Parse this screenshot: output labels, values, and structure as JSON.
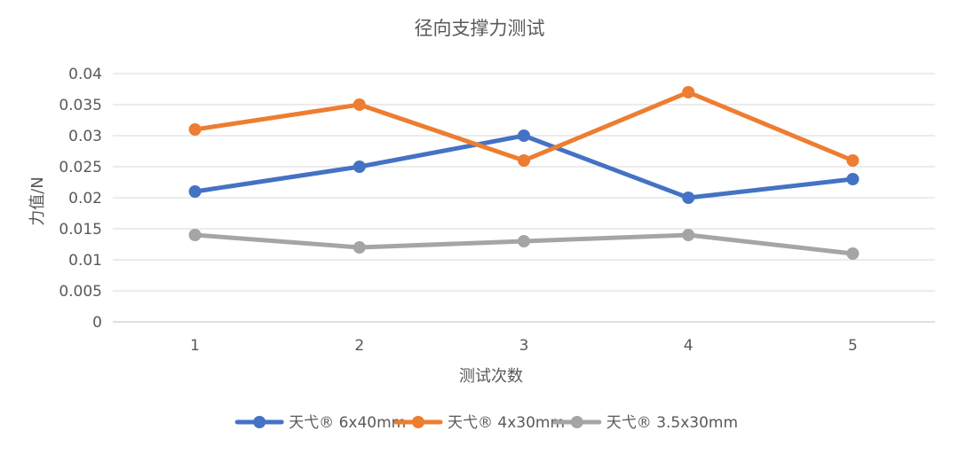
{
  "chart_data": {
    "type": "line",
    "title": "径向支撑力测试",
    "xlabel": "测试次数",
    "ylabel": "力值/N",
    "categories": [
      "1",
      "2",
      "3",
      "4",
      "5"
    ],
    "ylim": [
      0,
      0.04
    ],
    "y_ticks": [
      0,
      0.005,
      0.01,
      0.015,
      0.02,
      0.025,
      0.03,
      0.035,
      0.04
    ],
    "y_tick_labels": [
      "0",
      "0.005",
      "0.01",
      "0.015",
      "0.02",
      "0.025",
      "0.03",
      "0.035",
      "0.04"
    ],
    "grid": true,
    "legend_position": "bottom",
    "series": [
      {
        "name": "天弋® 6x40mm",
        "color": "#4472C4",
        "values": [
          0.021,
          0.025,
          0.03,
          0.02,
          0.023
        ]
      },
      {
        "name": "天弋® 4x30mm",
        "color": "#ED7D31",
        "values": [
          0.031,
          0.035,
          0.026,
          0.037,
          0.026
        ]
      },
      {
        "name": "天弋® 3.5x30mm",
        "color": "#A5A5A5",
        "values": [
          0.014,
          0.012,
          0.013,
          0.014,
          0.011
        ]
      }
    ]
  }
}
